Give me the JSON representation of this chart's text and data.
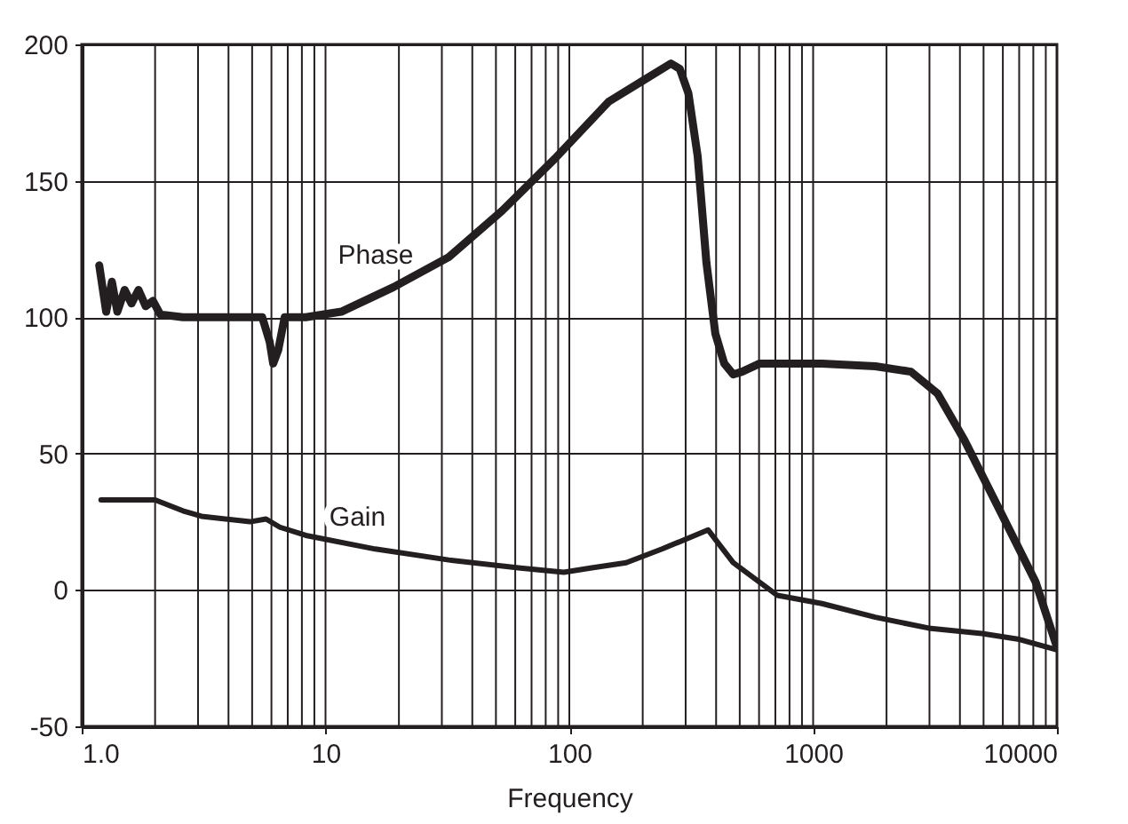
{
  "chart_data": {
    "type": "line",
    "xlabel": "Frequency",
    "log": "x",
    "xlim": [
      1,
      10000
    ],
    "ylim": [
      -50,
      200
    ],
    "xticks": [
      {
        "value": 1,
        "label": "1.0"
      },
      10,
      100,
      1000,
      10000
    ],
    "yticks": [
      -50,
      0,
      50,
      100,
      150,
      200
    ],
    "grid": true,
    "series": [
      {
        "name": "Phase",
        "color": "#231f20",
        "x": [
          1.18,
          1.26,
          1.33,
          1.4,
          1.5,
          1.6,
          1.71,
          1.83,
          1.96,
          2.1,
          2.6,
          4.2,
          5.5,
          5.9,
          6.1,
          6.4,
          6.8,
          8.3,
          11.6,
          19,
          32,
          53,
          87,
          145,
          203,
          261,
          284,
          308,
          336,
          365,
          397,
          432,
          470,
          511,
          604,
          1087,
          1800,
          2520,
          3240,
          4170,
          5840,
          8170,
          10000
        ],
        "values": [
          119,
          102,
          113,
          102,
          110,
          105,
          110,
          104,
          106,
          101,
          100,
          100,
          100,
          91,
          83,
          88,
          100,
          100,
          102,
          111,
          122,
          139,
          158,
          179,
          187,
          193,
          191,
          182,
          159,
          120,
          94,
          83,
          79,
          80,
          83,
          83,
          82,
          80,
          72,
          55,
          29,
          3,
          -21
        ]
      },
      {
        "name": "Gain",
        "color": "#231f20",
        "x": [
          1.2,
          2,
          2.6,
          3.1,
          4.9,
          5.7,
          6.5,
          8.3,
          16,
          32,
          63,
          95,
          122,
          171,
          240,
          371,
          470,
          714,
          1087,
          1800,
          2980,
          4930,
          6900,
          10000
        ],
        "values": [
          33,
          33,
          29,
          27,
          25,
          26,
          23,
          20,
          15,
          11,
          8,
          6.5,
          8,
          10,
          15,
          22,
          10,
          -2,
          -5,
          -10,
          -14,
          -16,
          -18,
          -22
        ]
      }
    ]
  }
}
